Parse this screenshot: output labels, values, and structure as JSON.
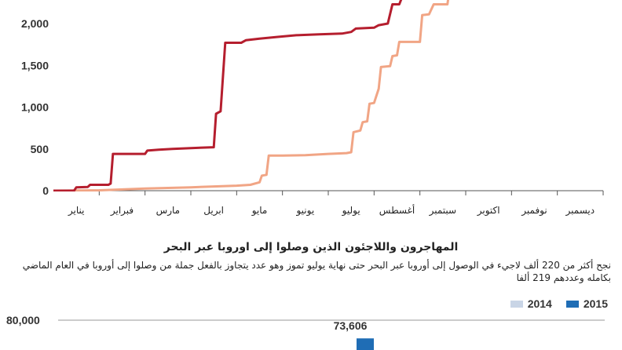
{
  "colors": {
    "series_2015": "#b51e2e",
    "series_2014": "#f1a585",
    "bar_2015": "#1f6db5",
    "bar_2014": "#c9d5e6",
    "axis": "#555555"
  },
  "chart_data": [
    {
      "type": "line",
      "title": "",
      "xlabel": "",
      "ylabel": "",
      "ylim": [
        0,
        2250
      ],
      "yticks": [
        "2,000",
        "1,500",
        "1,000",
        "500",
        "0"
      ],
      "ytick_values": [
        2000,
        1500,
        1000,
        500,
        0
      ],
      "grid": false,
      "months": [
        "يناير",
        "فبراير",
        "مارس",
        "ابريل",
        "مايو",
        "يونيو",
        "يوليو",
        "أغسطس",
        "سبتمبر",
        "اكتوبر",
        "نوفمبر",
        "ديسمبر"
      ],
      "x_range": [
        0,
        12
      ],
      "series": [
        {
          "points": [
            [
              0,
              0
            ],
            [
              0.45,
              0
            ],
            [
              0.5,
              40
            ],
            [
              0.75,
              45
            ],
            [
              0.8,
              70
            ],
            [
              1.2,
              70
            ],
            [
              1.25,
              85
            ],
            [
              1.3,
              440
            ],
            [
              2.0,
              440
            ],
            [
              2.05,
              480
            ],
            [
              2.3,
              490
            ],
            [
              2.6,
              500
            ],
            [
              3.0,
              510
            ],
            [
              3.5,
              520
            ],
            [
              3.55,
              920
            ],
            [
              3.65,
              950
            ],
            [
              3.75,
              1770
            ],
            [
              4.1,
              1770
            ],
            [
              4.2,
              1800
            ],
            [
              4.5,
              1820
            ],
            [
              4.9,
              1840
            ],
            [
              5.3,
              1860
            ],
            [
              5.8,
              1870
            ],
            [
              6.3,
              1880
            ],
            [
              6.5,
              1900
            ],
            [
              6.6,
              1940
            ],
            [
              7.0,
              1950
            ],
            [
              7.1,
              1980
            ],
            [
              7.3,
              2000
            ],
            [
              7.4,
              2230
            ],
            [
              7.55,
              2230
            ],
            [
              7.6,
              2300
            ]
          ]
        },
        {
          "points": [
            [
              0,
              0
            ],
            [
              1.0,
              5
            ],
            [
              2.0,
              25
            ],
            [
              3.0,
              40
            ],
            [
              4.0,
              60
            ],
            [
              4.3,
              70
            ],
            [
              4.5,
              100
            ],
            [
              4.55,
              180
            ],
            [
              4.65,
              190
            ],
            [
              4.7,
              420
            ],
            [
              5.0,
              420
            ],
            [
              5.5,
              425
            ],
            [
              6.0,
              440
            ],
            [
              6.4,
              450
            ],
            [
              6.5,
              460
            ],
            [
              6.55,
              700
            ],
            [
              6.7,
              720
            ],
            [
              6.75,
              820
            ],
            [
              6.85,
              830
            ],
            [
              6.9,
              1040
            ],
            [
              7.0,
              1050
            ],
            [
              7.1,
              1220
            ],
            [
              7.15,
              1480
            ],
            [
              7.35,
              1490
            ],
            [
              7.4,
              1610
            ],
            [
              7.5,
              1620
            ],
            [
              7.55,
              1780
            ],
            [
              8.0,
              1780
            ],
            [
              8.05,
              2100
            ],
            [
              8.2,
              2110
            ],
            [
              8.3,
              2230
            ],
            [
              8.6,
              2230
            ],
            [
              8.62,
              2300
            ]
          ]
        }
      ]
    },
    {
      "type": "bar",
      "title": "المهاجرون واللاجئون الذين وصلوا إلى اوروبا عبر البحر",
      "subtitle": "نجح أكثر من 220 ألف لاجيء في الوصول إلى أوروبا عبر البحر حتى نهاية يوليو تموز وهو عدد يتجاوز بالفعل جملة من وصلوا إلى أوروبا في العام الماضي بكامله وعددهم 219 ألفا",
      "legend": [
        "2015",
        "2014"
      ],
      "legend_position": "top-right",
      "yticks": [
        "80,000"
      ],
      "ytick_values": [
        80000
      ],
      "ylim": [
        0,
        80000
      ],
      "data_labels": [
        "73,606"
      ],
      "values": [
        73606
      ]
    }
  ]
}
